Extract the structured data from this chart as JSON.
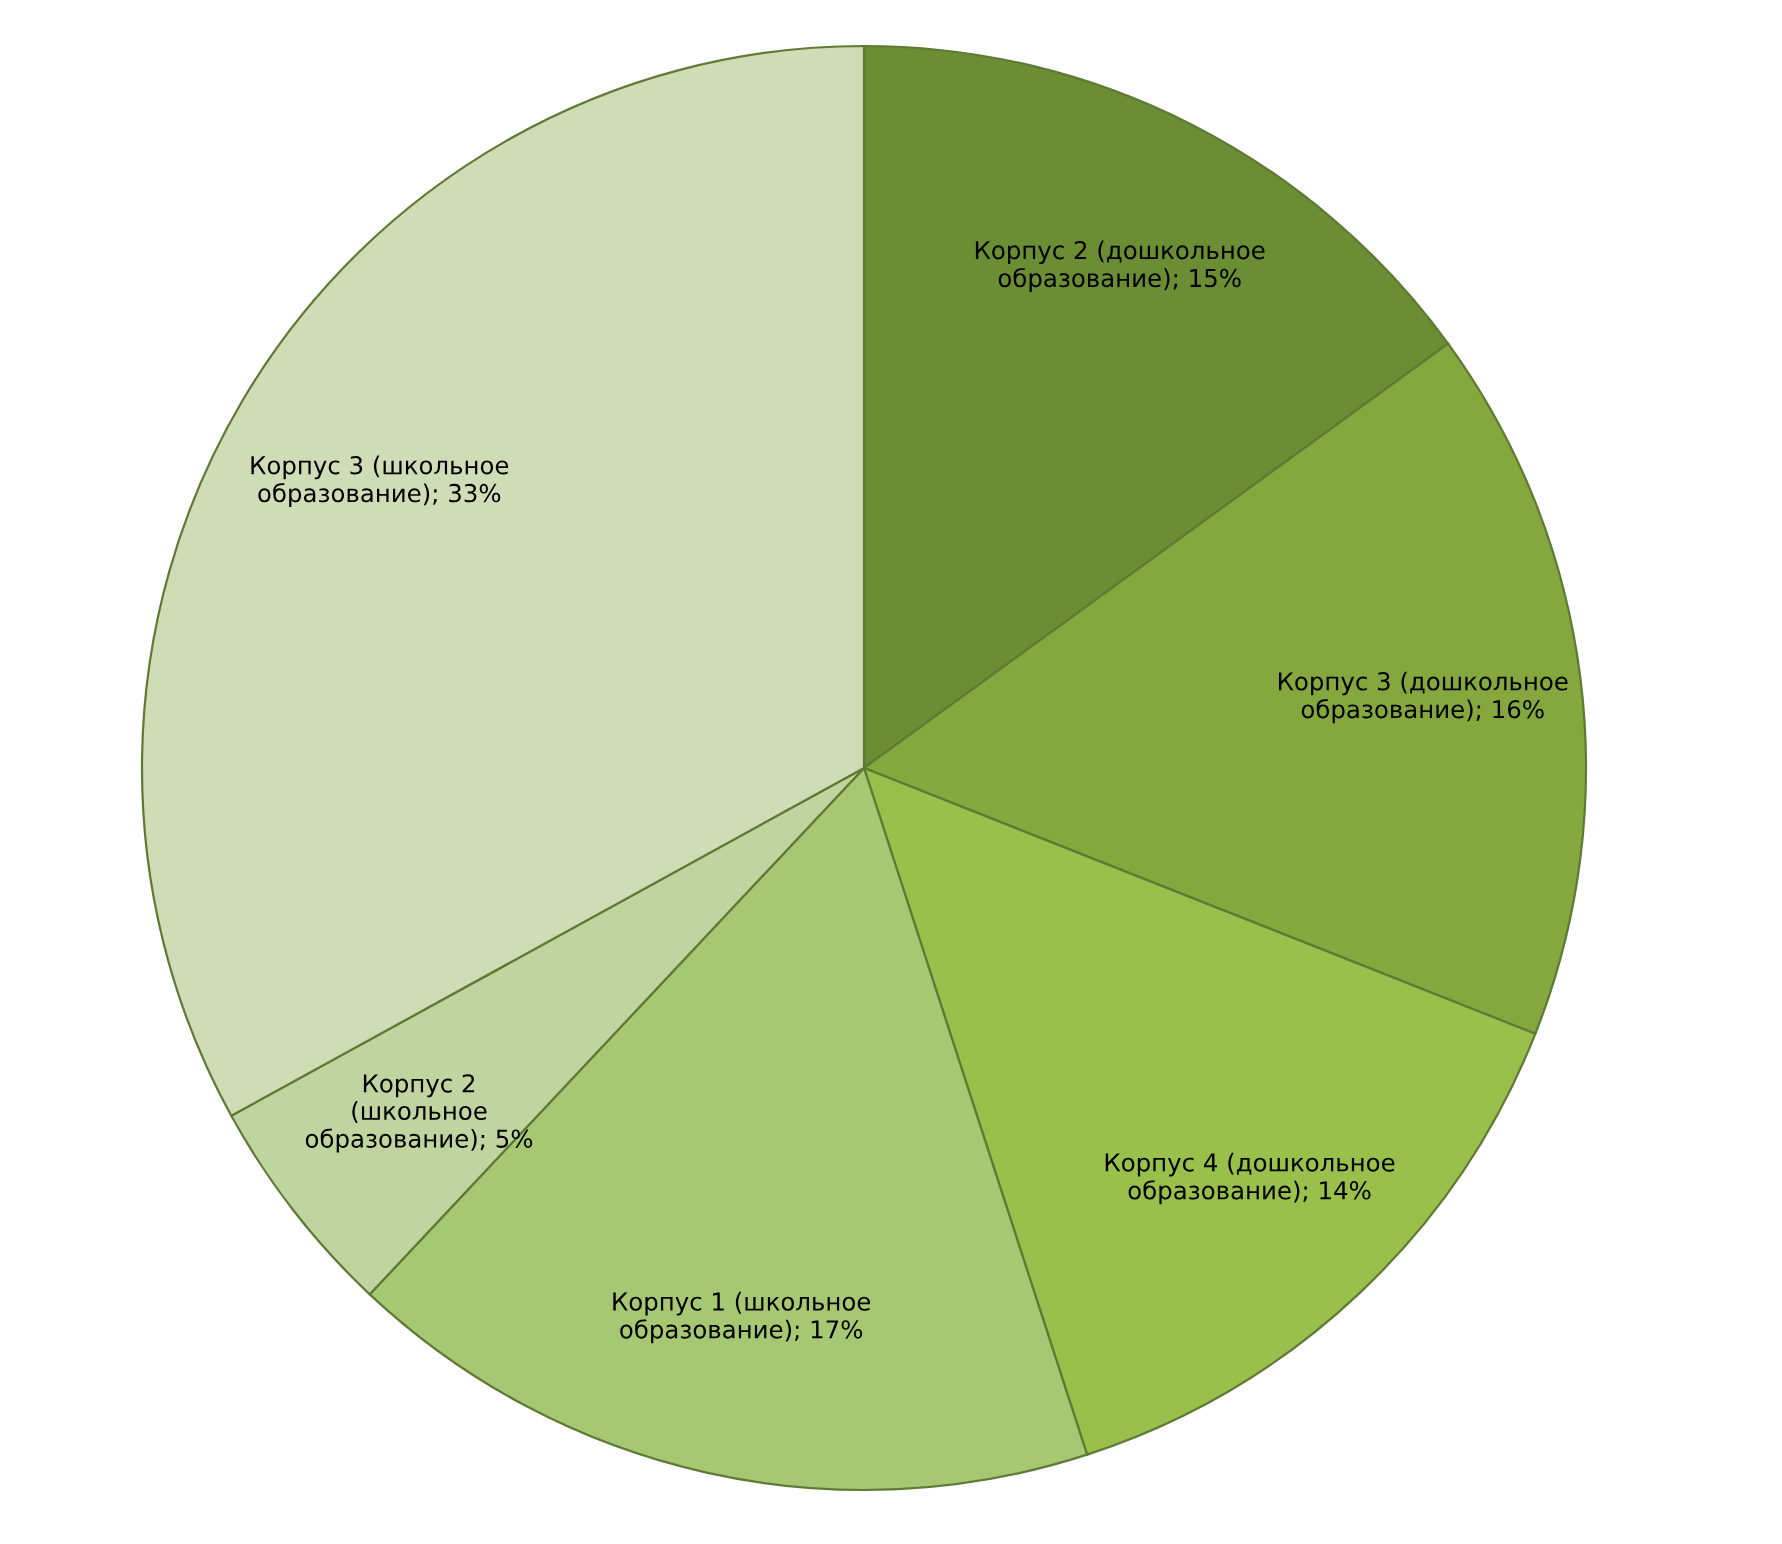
{
  "chart_data": {
    "type": "pie",
    "categories": [
      "Корпус 2 (дошкольное\nобразование)",
      "Корпус 3 (дошкольное\nобразование)",
      "Корпус 4 (дошкольное\nобразование)",
      "Корпус 1 (школьное\nобразование)",
      "Корпус 2\n(школьное\nобразование)",
      "Корпус 3 (школьное\nобразование)"
    ],
    "values": [
      15,
      16,
      14,
      17,
      5,
      33
    ],
    "value_labels": [
      "15%",
      "16%",
      "14%",
      "17%",
      "5%",
      "33%"
    ],
    "colors": [
      "#6b8d33",
      "#84a83e",
      "#98c04a",
      "#a6c872",
      "#c0d4a0",
      "#cfdcb6"
    ]
  }
}
